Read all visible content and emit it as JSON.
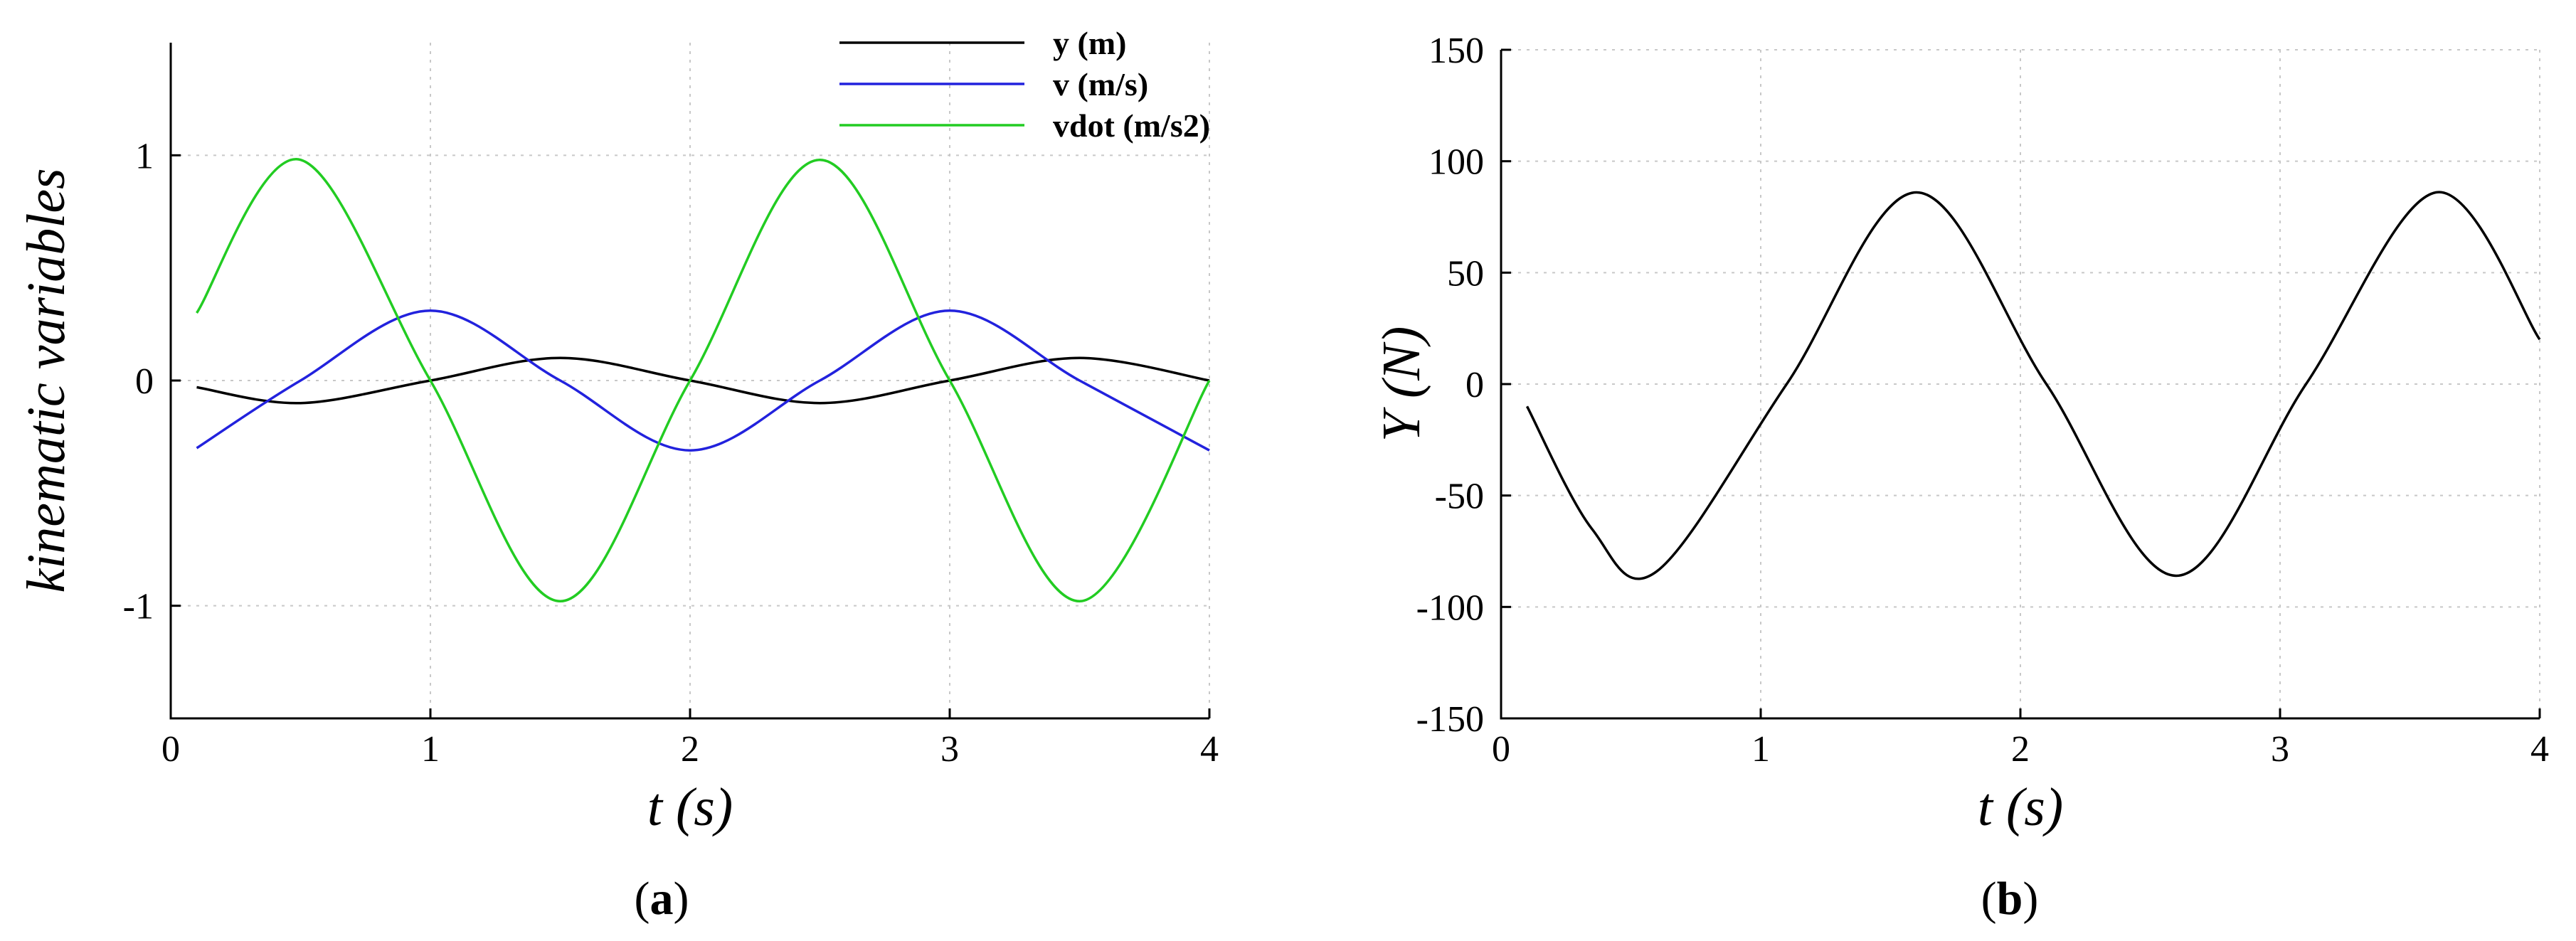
{
  "chart_data": [
    {
      "type": "line",
      "panel_label": "a",
      "xlabel": "t (s)",
      "ylabel": "kinematic variables",
      "xlim": [
        0,
        4
      ],
      "ylim": [
        -1.5,
        1.5
      ],
      "x_ticks": [
        0,
        1,
        2,
        3,
        4
      ],
      "y_ticks": [
        -1,
        0,
        1
      ],
      "grid": true,
      "legend_position": "top-right",
      "series": [
        {
          "name": "y (m)",
          "color": "#000000",
          "x": [
            0.1,
            0.5,
            1.0,
            1.5,
            2.0,
            2.5,
            3.0,
            3.5,
            4.0
          ],
          "values": [
            -0.03,
            -0.1,
            0.0,
            0.1,
            0.0,
            -0.1,
            0.0,
            0.1,
            0.0
          ]
        },
        {
          "name": "v (m/s)",
          "color": "#2222dd",
          "x": [
            0.1,
            0.5,
            1.0,
            1.5,
            2.0,
            2.5,
            3.0,
            3.5,
            4.0
          ],
          "values": [
            -0.3,
            0.0,
            0.31,
            0.0,
            -0.31,
            0.0,
            0.31,
            0.0,
            -0.31
          ]
        },
        {
          "name": "vdot (m/s2)",
          "color": "#22cc22",
          "x": [
            0.1,
            0.5,
            1.0,
            1.5,
            2.0,
            2.5,
            3.0,
            3.5,
            4.0
          ],
          "values": [
            0.3,
            0.98,
            0.0,
            -0.98,
            0.0,
            0.98,
            0.0,
            -0.98,
            0.0
          ]
        }
      ]
    },
    {
      "type": "line",
      "panel_label": "b",
      "xlabel": "t (s)",
      "ylabel": "Y (N)",
      "xlim": [
        0,
        4
      ],
      "ylim": [
        -150,
        150
      ],
      "x_ticks": [
        0,
        1,
        2,
        3,
        4
      ],
      "y_ticks": [
        -150,
        -100,
        -50,
        0,
        50,
        100,
        150
      ],
      "grid": true,
      "series": [
        {
          "color": "#000000",
          "x": [
            0.1,
            0.35,
            0.6,
            1.1,
            1.6,
            2.1,
            2.6,
            3.1,
            3.6,
            4.0
          ],
          "values": [
            -10,
            -65,
            -84,
            0,
            86,
            0,
            -86,
            0,
            86,
            20
          ]
        }
      ]
    }
  ]
}
